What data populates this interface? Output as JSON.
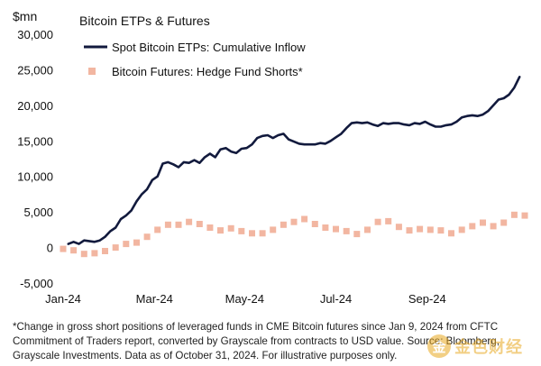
{
  "chart_data": {
    "type": "line",
    "title": "Bitcoin ETPs & Futures",
    "ylabel": "$mn",
    "xlabel": "",
    "ylim": [
      -5000,
      30000
    ],
    "yticks": [
      30000,
      25000,
      20000,
      15000,
      10000,
      5000,
      0,
      -5000
    ],
    "ytick_labels": [
      "30,000",
      "25,000",
      "20,000",
      "15,000",
      "10,000",
      "5,000",
      "0",
      "-5,000"
    ],
    "xticks": [
      {
        "label": "Jan-24",
        "week": 0
      },
      {
        "label": "Mar-24",
        "week": 8.7
      },
      {
        "label": "May-24",
        "week": 17.3
      },
      {
        "label": "Jul-24",
        "week": 26
      },
      {
        "label": "Sep-24",
        "week": 34.7
      }
    ],
    "xlim": [
      0,
      44
    ],
    "grid": false,
    "legend_placement": "top-left",
    "series": [
      {
        "name": "Spot Bitcoin ETPs: Cumulative Inflow",
        "kind": "line",
        "color": "#121a3d",
        "points": [
          [
            0.5,
            500
          ],
          [
            1,
            800
          ],
          [
            1.5,
            500
          ],
          [
            2,
            1000
          ],
          [
            3,
            800
          ],
          [
            3.5,
            1000
          ],
          [
            4,
            1500
          ],
          [
            4.5,
            2300
          ],
          [
            5,
            2800
          ],
          [
            5.5,
            4000
          ],
          [
            6,
            4500
          ],
          [
            6.5,
            5200
          ],
          [
            7,
            6500
          ],
          [
            7.5,
            7500
          ],
          [
            8,
            8200
          ],
          [
            8.5,
            9500
          ],
          [
            9,
            10000
          ],
          [
            9.5,
            11800
          ],
          [
            10,
            12000
          ],
          [
            10.5,
            11700
          ],
          [
            11,
            11300
          ],
          [
            11.5,
            12000
          ],
          [
            12,
            11900
          ],
          [
            12.5,
            12300
          ],
          [
            13,
            11900
          ],
          [
            13.5,
            12700
          ],
          [
            14,
            13200
          ],
          [
            14.5,
            12700
          ],
          [
            15,
            13800
          ],
          [
            15.5,
            14000
          ],
          [
            16,
            13500
          ],
          [
            16.5,
            13300
          ],
          [
            17,
            13900
          ],
          [
            17.5,
            14000
          ],
          [
            18,
            14500
          ],
          [
            18.5,
            15400
          ],
          [
            19,
            15700
          ],
          [
            19.5,
            15800
          ],
          [
            20,
            15400
          ],
          [
            20.5,
            15800
          ],
          [
            21,
            16000
          ],
          [
            21.5,
            15200
          ],
          [
            22,
            14900
          ],
          [
            22.5,
            14600
          ],
          [
            23,
            14500
          ],
          [
            24,
            14500
          ],
          [
            24.5,
            14700
          ],
          [
            25,
            14600
          ],
          [
            25.5,
            15000
          ],
          [
            26,
            15500
          ],
          [
            26.5,
            16000
          ],
          [
            27,
            16800
          ],
          [
            27.5,
            17500
          ],
          [
            28,
            17600
          ],
          [
            28.5,
            17500
          ],
          [
            29,
            17600
          ],
          [
            29.5,
            17300
          ],
          [
            30,
            17100
          ],
          [
            30.5,
            17500
          ],
          [
            31,
            17400
          ],
          [
            31.5,
            17500
          ],
          [
            32,
            17500
          ],
          [
            32.5,
            17300
          ],
          [
            33,
            17200
          ],
          [
            33.5,
            17500
          ],
          [
            34,
            17400
          ],
          [
            34.5,
            17700
          ],
          [
            35,
            17300
          ],
          [
            35.5,
            17000
          ],
          [
            36,
            17000
          ],
          [
            36.5,
            17200
          ],
          [
            37,
            17300
          ],
          [
            37.5,
            17700
          ],
          [
            38,
            18300
          ],
          [
            38.5,
            18500
          ],
          [
            39,
            18600
          ],
          [
            39.5,
            18500
          ],
          [
            40,
            18700
          ],
          [
            40.5,
            19200
          ],
          [
            41,
            20000
          ],
          [
            41.5,
            20800
          ],
          [
            42,
            21000
          ],
          [
            42.5,
            21500
          ],
          [
            43,
            22500
          ],
          [
            43.5,
            24000
          ]
        ]
      },
      {
        "name": "Bitcoin Futures: Hedge Fund Shorts*",
        "kind": "scatter",
        "color": "#f2b6a1",
        "points": [
          [
            0,
            -200
          ],
          [
            1,
            -400
          ],
          [
            2,
            -900
          ],
          [
            3,
            -800
          ],
          [
            4,
            -500
          ],
          [
            5,
            0
          ],
          [
            6,
            500
          ],
          [
            7,
            700
          ],
          [
            8,
            1500
          ],
          [
            9,
            2500
          ],
          [
            10,
            3200
          ],
          [
            11,
            3200
          ],
          [
            12,
            3600
          ],
          [
            13,
            3300
          ],
          [
            14,
            2800
          ],
          [
            15,
            2400
          ],
          [
            16,
            2700
          ],
          [
            17,
            2300
          ],
          [
            18,
            2000
          ],
          [
            19,
            2000
          ],
          [
            20,
            2500
          ],
          [
            21,
            3200
          ],
          [
            22,
            3600
          ],
          [
            23,
            4000
          ],
          [
            24,
            3300
          ],
          [
            25,
            2800
          ],
          [
            26,
            2600
          ],
          [
            27,
            2300
          ],
          [
            28,
            1900
          ],
          [
            29,
            2500
          ],
          [
            30,
            3600
          ],
          [
            31,
            3700
          ],
          [
            32,
            2900
          ],
          [
            33,
            2400
          ],
          [
            34,
            2600
          ],
          [
            35,
            2500
          ],
          [
            36,
            2400
          ],
          [
            37,
            2000
          ],
          [
            38,
            2500
          ],
          [
            39,
            3000
          ],
          [
            40,
            3500
          ],
          [
            41,
            3000
          ],
          [
            42,
            3500
          ],
          [
            43,
            4600
          ],
          [
            44,
            4500
          ]
        ]
      }
    ]
  },
  "footnote": "*Change in gross short positions of leveraged funds in CME Bitcoin futures since Jan 9, 2024 from CFTC Commitment of Traders report, converted by Grayscale from contracts to USD value. Source: Bloomberg, Grayscale Investments. Data as of October 31, 2024. For illustrative purposes only.",
  "watermark": {
    "text": "金色财经",
    "logo_glyph": "金"
  }
}
